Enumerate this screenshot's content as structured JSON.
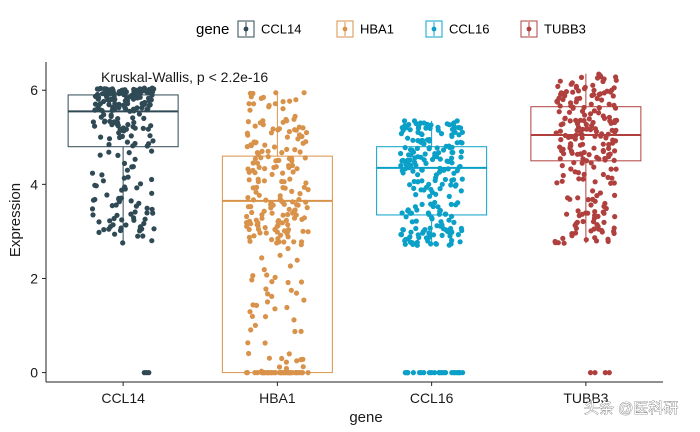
{
  "chart_data": {
    "type": "boxplot",
    "legend": {
      "title": "gene",
      "placement": "top",
      "entries": [
        "CCL14",
        "HBA1",
        "CCL16",
        "TUBB3"
      ]
    },
    "categories": [
      "CCL14",
      "HBA1",
      "CCL16",
      "TUBB3"
    ],
    "colors": {
      "CCL14": "#2f4a55",
      "HBA1": "#d9924a",
      "CCL16": "#0aa0c8",
      "TUBB3": "#b0403e"
    },
    "xlabel": "gene",
    "ylabel": "Expression",
    "ylim": [
      -0.2,
      6.6
    ],
    "yticks": [
      0,
      2,
      4,
      6
    ],
    "annotation": "Kruskal-Wallis, p < 2.2e-16",
    "series": [
      {
        "name": "CCL14",
        "q1": 4.8,
        "median": 5.55,
        "q3": 5.9,
        "whisker_low": 2.75,
        "whisker_high": 6.05,
        "zeros": 3
      },
      {
        "name": "HBA1",
        "q1": 0.0,
        "median": 3.65,
        "q3": 4.6,
        "whisker_low": 0.0,
        "whisker_high": 5.95,
        "zeros": 40
      },
      {
        "name": "CCL16",
        "q1": 3.35,
        "median": 4.35,
        "q3": 4.8,
        "whisker_low": 2.7,
        "whisker_high": 5.35,
        "zeros": 25
      },
      {
        "name": "TUBB3",
        "q1": 4.5,
        "median": 5.05,
        "q3": 5.65,
        "whisker_low": 2.75,
        "whisker_high": 6.35,
        "zeros": 4
      }
    ]
  },
  "watermark": "头条 @医科研"
}
